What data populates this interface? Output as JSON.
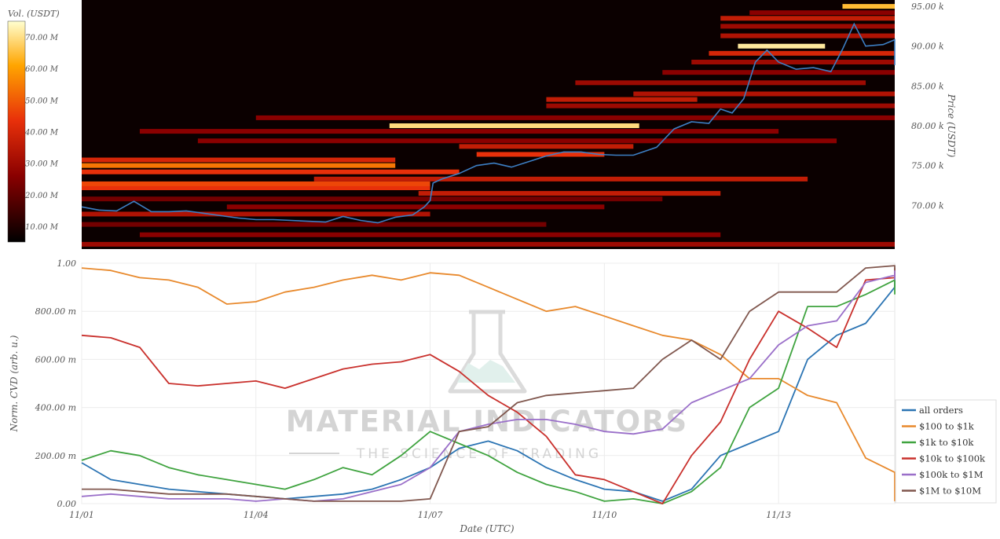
{
  "colors": {
    "price_line": "#3d7fc4",
    "series": [
      "#2b74b3",
      "#e8892c",
      "#3fa33f",
      "#c9302c",
      "#9a6fc9",
      "#80574e"
    ],
    "watermark": "#c9c9c9"
  },
  "watermark": {
    "brand": "MATERIAL INDICATORS",
    "tagline": "THE SCIENCE OF TRADING"
  },
  "chart_data": [
    {
      "type": "heatmap",
      "colorbar": {
        "title": "Vol. (USDT)",
        "ticks": [
          "10.00 M",
          "20.00 M",
          "30.00 M",
          "40.00 M",
          "50.00 M",
          "60.00 M",
          "70.00 M"
        ],
        "range": [
          5,
          75
        ]
      },
      "y_axis": {
        "label": "Price (USDT)",
        "ticks": [
          "70.00 k",
          "75.00 k",
          "80.00 k",
          "85.00 k",
          "90.00 k",
          "95.00 k"
        ],
        "range": [
          64500,
          95800
        ]
      },
      "x_range": [
        "11/01",
        "11/15"
      ],
      "price_series": {
        "days": [
          0,
          0.3,
          0.6,
          0.9,
          1.2,
          1.5,
          1.8,
          2.1,
          2.4,
          2.7,
          3.0,
          3.3,
          3.6,
          3.9,
          4.2,
          4.5,
          4.8,
          5.1,
          5.4,
          5.7,
          5.9,
          6.0,
          6.05,
          6.2,
          6.5,
          6.8,
          7.1,
          7.4,
          7.7,
          8.0,
          8.3,
          8.6,
          8.9,
          9.2,
          9.5,
          9.9,
          10.2,
          10.5,
          10.8,
          11.0,
          11.2,
          11.4,
          11.6,
          11.8,
          12.0,
          12.3,
          12.6,
          12.9,
          13.1,
          13.3,
          13.5,
          13.8,
          14.1,
          14.4,
          14.7,
          15.0
        ],
        "prices": [
          69800,
          69400,
          69300,
          70500,
          69200,
          69200,
          69300,
          69000,
          68700,
          68400,
          68200,
          68200,
          68100,
          68000,
          67900,
          68600,
          68100,
          67800,
          68500,
          68800,
          69800,
          70600,
          72800,
          73300,
          74000,
          75000,
          75300,
          74800,
          75500,
          76200,
          76700,
          76700,
          76400,
          76300,
          76300,
          77300,
          79600,
          80500,
          80300,
          82100,
          81600,
          83400,
          88000,
          89500,
          88000,
          87100,
          87300,
          86800,
          89600,
          92800,
          90000,
          90200,
          90800,
          89800,
          87800,
          87600
        ]
      },
      "levels": [
        {
          "p": 65100,
          "c": 0.35,
          "s": 0,
          "e": 14
        },
        {
          "p": 66300,
          "c": 0.3,
          "s": 1,
          "e": 11
        },
        {
          "p": 67600,
          "c": 0.25,
          "s": 0,
          "e": 8
        },
        {
          "p": 68900,
          "c": 0.4,
          "s": 0,
          "e": 6
        },
        {
          "p": 69800,
          "c": 0.3,
          "s": 2.5,
          "e": 9
        },
        {
          "p": 70800,
          "c": 0.25,
          "s": 0,
          "e": 10
        },
        {
          "p": 71500,
          "c": 0.45,
          "s": 5.8,
          "e": 11
        },
        {
          "p": 72200,
          "c": 0.55,
          "s": 0,
          "e": 6
        },
        {
          "p": 72700,
          "c": 0.6,
          "s": 0,
          "e": 6
        },
        {
          "p": 73300,
          "c": 0.45,
          "s": 4,
          "e": 12.5
        },
        {
          "p": 74200,
          "c": 0.55,
          "s": 0,
          "e": 6.5
        },
        {
          "p": 75000,
          "c": 0.7,
          "s": 0,
          "e": 5.4
        },
        {
          "p": 75700,
          "c": 0.5,
          "s": 0,
          "e": 5.4
        },
        {
          "p": 76400,
          "c": 0.55,
          "s": 6.8,
          "e": 9.0
        },
        {
          "p": 77400,
          "c": 0.45,
          "s": 6.5,
          "e": 9.5
        },
        {
          "p": 78100,
          "c": 0.3,
          "s": 2,
          "e": 13
        },
        {
          "p": 79300,
          "c": 0.3,
          "s": 1,
          "e": 12
        },
        {
          "p": 80000,
          "c": 0.92,
          "s": 5.3,
          "e": 9.6
        },
        {
          "p": 81000,
          "c": 0.3,
          "s": 3,
          "e": 14
        },
        {
          "p": 82500,
          "c": 0.35,
          "s": 8,
          "e": 14
        },
        {
          "p": 83300,
          "c": 0.45,
          "s": 8,
          "e": 10.6
        },
        {
          "p": 84000,
          "c": 0.4,
          "s": 9.5,
          "e": 14
        },
        {
          "p": 85400,
          "c": 0.35,
          "s": 8.5,
          "e": 13.5
        },
        {
          "p": 86700,
          "c": 0.3,
          "s": 10,
          "e": 14
        },
        {
          "p": 88000,
          "c": 0.35,
          "s": 10.5,
          "e": 14
        },
        {
          "p": 89100,
          "c": 0.5,
          "s": 10.8,
          "e": 14
        },
        {
          "p": 90000,
          "c": 0.95,
          "s": 11.3,
          "e": 12.8
        },
        {
          "p": 91300,
          "c": 0.4,
          "s": 11,
          "e": 14
        },
        {
          "p": 92500,
          "c": 0.35,
          "s": 11,
          "e": 14
        },
        {
          "p": 93500,
          "c": 0.45,
          "s": 11,
          "e": 14
        },
        {
          "p": 94200,
          "c": 0.3,
          "s": 11.5,
          "e": 14
        },
        {
          "p": 95000,
          "c": 0.85,
          "s": 13.1,
          "e": 15
        }
      ]
    },
    {
      "type": "line",
      "xlabel": "Date (UTC)",
      "ylabel": "Norm. CVD (arb. u.)",
      "x_ticks": [
        "11/01",
        "11/04",
        "11/07",
        "11/10",
        "11/13"
      ],
      "y_ticks": [
        "0.00",
        "200.00 m",
        "400.00 m",
        "600.00 m",
        "800.00 m",
        "1.00"
      ],
      "ylim": [
        0,
        1
      ],
      "legend_position": "bottom-right",
      "x_days": [
        0,
        0.5,
        1.0,
        1.5,
        2.0,
        2.5,
        3.0,
        3.5,
        4.0,
        4.5,
        5.0,
        5.5,
        6.0,
        6.5,
        7.0,
        7.5,
        8.0,
        8.5,
        9.0,
        9.5,
        10.0,
        10.5,
        11.0,
        11.5,
        12.0,
        12.5,
        13.0,
        13.5,
        14.0,
        14.5,
        15.0
      ],
      "series": [
        {
          "name": "all orders",
          "values": [
            0.17,
            0.1,
            0.08,
            0.06,
            0.05,
            0.04,
            0.03,
            0.02,
            0.03,
            0.04,
            0.06,
            0.1,
            0.15,
            0.23,
            0.26,
            0.22,
            0.15,
            0.1,
            0.06,
            0.05,
            0.01,
            0.06,
            0.2,
            0.25,
            0.3,
            0.6,
            0.7,
            0.75,
            0.9,
            0.96,
            0.95
          ]
        },
        {
          "name": "$100 to $1k",
          "values": [
            0.98,
            0.97,
            0.94,
            0.93,
            0.9,
            0.83,
            0.84,
            0.88,
            0.9,
            0.93,
            0.95,
            0.93,
            0.96,
            0.95,
            0.9,
            0.85,
            0.8,
            0.82,
            0.78,
            0.74,
            0.7,
            0.68,
            0.62,
            0.52,
            0.52,
            0.45,
            0.42,
            0.19,
            0.13,
            0.1,
            0.01
          ]
        },
        {
          "name": "$1k to $10k",
          "values": [
            0.18,
            0.22,
            0.2,
            0.15,
            0.12,
            0.1,
            0.08,
            0.06,
            0.1,
            0.15,
            0.12,
            0.2,
            0.3,
            0.25,
            0.2,
            0.13,
            0.08,
            0.05,
            0.01,
            0.02,
            0.0,
            0.05,
            0.15,
            0.4,
            0.48,
            0.82,
            0.82,
            0.87,
            0.93,
            0.9,
            0.87
          ]
        },
        {
          "name": "$10k to $100k",
          "values": [
            0.7,
            0.69,
            0.65,
            0.5,
            0.49,
            0.5,
            0.51,
            0.48,
            0.52,
            0.56,
            0.58,
            0.59,
            0.62,
            0.55,
            0.45,
            0.38,
            0.28,
            0.12,
            0.1,
            0.05,
            0.0,
            0.2,
            0.34,
            0.6,
            0.8,
            0.73,
            0.65,
            0.93,
            0.94,
            0.95,
            0.98
          ]
        },
        {
          "name": "$100k to $1M",
          "values": [
            0.03,
            0.04,
            0.03,
            0.02,
            0.02,
            0.02,
            0.01,
            0.02,
            0.01,
            0.02,
            0.05,
            0.08,
            0.15,
            0.3,
            0.33,
            0.35,
            0.35,
            0.33,
            0.3,
            0.29,
            0.31,
            0.42,
            0.47,
            0.52,
            0.66,
            0.74,
            0.76,
            0.92,
            0.95,
            0.97,
            0.93
          ]
        },
        {
          "name": "$1M to $10M",
          "values": [
            0.06,
            0.06,
            0.05,
            0.04,
            0.04,
            0.04,
            0.03,
            0.02,
            0.01,
            0.01,
            0.01,
            0.01,
            0.02,
            0.3,
            0.32,
            0.42,
            0.45,
            0.46,
            0.47,
            0.48,
            0.6,
            0.68,
            0.6,
            0.8,
            0.88,
            0.88,
            0.88,
            0.98,
            0.99,
            0.97,
            0.97
          ]
        }
      ]
    }
  ]
}
